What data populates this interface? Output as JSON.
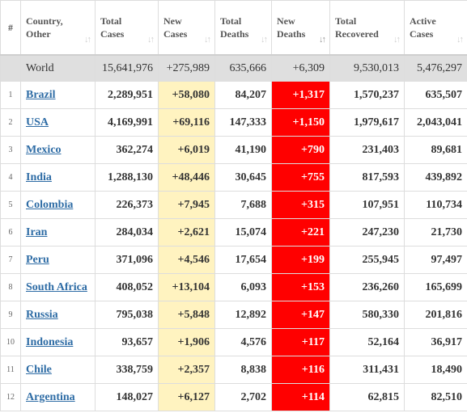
{
  "headers": [
    {
      "line1": "#",
      "line2": ""
    },
    {
      "line1": "Country,",
      "line2": "Other",
      "sort": "↓↑"
    },
    {
      "line1": "Total",
      "line2": "Cases",
      "sort": "↓↑"
    },
    {
      "line1": "New",
      "line2": "Cases",
      "sort": "↓↑"
    },
    {
      "line1": "Total",
      "line2": "Deaths",
      "sort": "↓↑"
    },
    {
      "line1": "New",
      "line2": "Deaths",
      "sort": "↓↑"
    },
    {
      "line1": "Total",
      "line2": "Recovered",
      "sort": "↓↑"
    },
    {
      "line1": "Active",
      "line2": "Cases",
      "sort": "↓↑"
    }
  ],
  "world": {
    "name": "World",
    "total_cases": "15,641,976",
    "new_cases": "+275,989",
    "total_deaths": "635,666",
    "new_deaths": "+6,309",
    "total_recovered": "9,530,013",
    "active_cases": "5,476,297"
  },
  "rows": [
    {
      "rank": "1",
      "country": "Brazil",
      "total_cases": "2,289,951",
      "new_cases": "+58,080",
      "total_deaths": "84,207",
      "new_deaths": "+1,317",
      "total_recovered": "1,570,237",
      "active_cases": "635,507"
    },
    {
      "rank": "2",
      "country": "USA",
      "total_cases": "4,169,991",
      "new_cases": "+69,116",
      "total_deaths": "147,333",
      "new_deaths": "+1,150",
      "total_recovered": "1,979,617",
      "active_cases": "2,043,041"
    },
    {
      "rank": "3",
      "country": "Mexico",
      "total_cases": "362,274",
      "new_cases": "+6,019",
      "total_deaths": "41,190",
      "new_deaths": "+790",
      "total_recovered": "231,403",
      "active_cases": "89,681"
    },
    {
      "rank": "4",
      "country": "India",
      "total_cases": "1,288,130",
      "new_cases": "+48,446",
      "total_deaths": "30,645",
      "new_deaths": "+755",
      "total_recovered": "817,593",
      "active_cases": "439,892"
    },
    {
      "rank": "5",
      "country": "Colombia",
      "total_cases": "226,373",
      "new_cases": "+7,945",
      "total_deaths": "7,688",
      "new_deaths": "+315",
      "total_recovered": "107,951",
      "active_cases": "110,734"
    },
    {
      "rank": "6",
      "country": "Iran",
      "total_cases": "284,034",
      "new_cases": "+2,621",
      "total_deaths": "15,074",
      "new_deaths": "+221",
      "total_recovered": "247,230",
      "active_cases": "21,730"
    },
    {
      "rank": "7",
      "country": "Peru",
      "total_cases": "371,096",
      "new_cases": "+4,546",
      "total_deaths": "17,654",
      "new_deaths": "+199",
      "total_recovered": "255,945",
      "active_cases": "97,497"
    },
    {
      "rank": "8",
      "country": "South Africa",
      "total_cases": "408,052",
      "new_cases": "+13,104",
      "total_deaths": "6,093",
      "new_deaths": "+153",
      "total_recovered": "236,260",
      "active_cases": "165,699"
    },
    {
      "rank": "9",
      "country": "Russia",
      "total_cases": "795,038",
      "new_cases": "+5,848",
      "total_deaths": "12,892",
      "new_deaths": "+147",
      "total_recovered": "580,330",
      "active_cases": "201,816"
    },
    {
      "rank": "10",
      "country": "Indonesia",
      "total_cases": "93,657",
      "new_cases": "+1,906",
      "total_deaths": "4,576",
      "new_deaths": "+117",
      "total_recovered": "52,164",
      "active_cases": "36,917"
    },
    {
      "rank": "11",
      "country": "Chile",
      "total_cases": "338,759",
      "new_cases": "+2,357",
      "total_deaths": "8,838",
      "new_deaths": "+116",
      "total_recovered": "311,431",
      "active_cases": "18,490"
    },
    {
      "rank": "12",
      "country": "Argentina",
      "total_cases": "148,027",
      "new_cases": "+6,127",
      "total_deaths": "2,702",
      "new_deaths": "+114",
      "total_recovered": "62,815",
      "active_cases": "82,510"
    }
  ],
  "colors": {
    "new_cases_bg": "#fff3c0",
    "new_deaths_bg": "#ff0000",
    "link": "#2e6ca5",
    "world_bg": "#dfdfdf"
  },
  "active_sort_column": "New Deaths"
}
